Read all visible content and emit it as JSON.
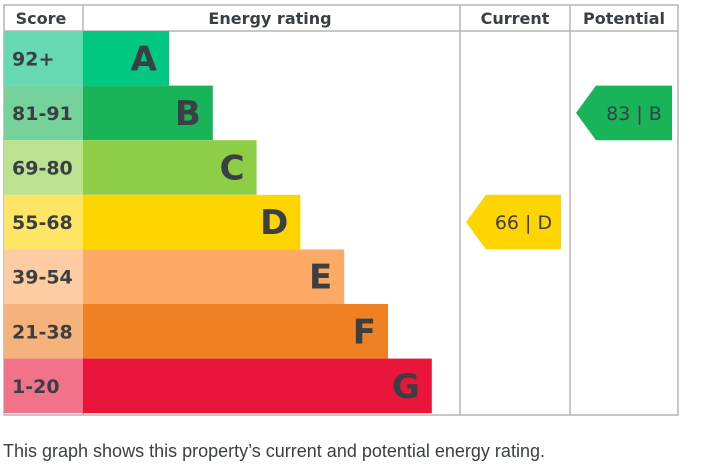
{
  "chart_data": {
    "type": "table",
    "columns": [
      "Score",
      "Energy rating",
      "Current",
      "Potential"
    ],
    "bands": [
      {
        "score": "92+",
        "letter": "A",
        "color": "#00c781",
        "score_bg": "#66d9b3"
      },
      {
        "score": "81-91",
        "letter": "B",
        "color": "#19b459",
        "score_bg": "#75d29b"
      },
      {
        "score": "69-80",
        "letter": "C",
        "color": "#8dce46",
        "score_bg": "#bbe290"
      },
      {
        "score": "55-68",
        "letter": "D",
        "color": "#ffd500",
        "score_bg": "#ffe566"
      },
      {
        "score": "39-54",
        "letter": "E",
        "color": "#fcaa65",
        "score_bg": "#fdcca3"
      },
      {
        "score": "21-38",
        "letter": "F",
        "color": "#ef8023",
        "score_bg": "#f5b37b"
      },
      {
        "score": "1-20",
        "letter": "G",
        "color": "#e9153b",
        "score_bg": "#f27389"
      }
    ],
    "current": {
      "value": 66,
      "band": "D",
      "label": "66 | D",
      "color": "#ffd500"
    },
    "potential": {
      "value": 83,
      "band": "B",
      "label": "83 | B",
      "color": "#19b459"
    }
  },
  "caption": "This graph shows this property’s current and potential energy rating."
}
